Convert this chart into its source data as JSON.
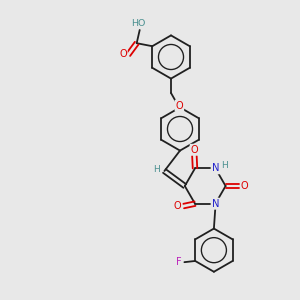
{
  "bg_color": "#e8e8e8",
  "bond_color": "#202020",
  "O_color": "#dd0000",
  "N_color": "#2222cc",
  "F_color": "#bb22bb",
  "H_color": "#4a9090",
  "lw": 1.3,
  "r_arom": 0.72,
  "xlim": [
    0,
    10
  ],
  "ylim": [
    0,
    10
  ]
}
